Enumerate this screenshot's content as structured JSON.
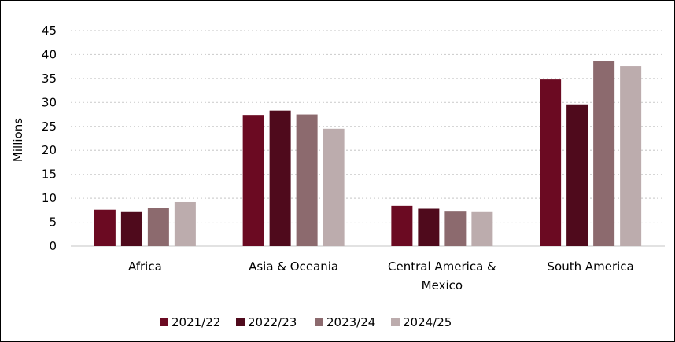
{
  "chart_data": {
    "type": "bar",
    "title": "",
    "xlabel": "",
    "ylabel": "Millions",
    "ylim": [
      0,
      45
    ],
    "yticks": [
      0,
      5,
      10,
      15,
      20,
      25,
      30,
      35,
      40,
      45
    ],
    "grid": true,
    "legend_position": "bottom",
    "categories": [
      "Africa",
      "Asia & Oceania",
      "Central America & Mexico",
      "South America"
    ],
    "category_lines": [
      [
        "Africa"
      ],
      [
        "Asia & Oceania"
      ],
      [
        "Central America &",
        "Mexico"
      ],
      [
        "South America"
      ]
    ],
    "series": [
      {
        "name": "2021/22",
        "color": "#6b0a22",
        "values": [
          7.6,
          27.4,
          8.4,
          34.8
        ]
      },
      {
        "name": "2022/23",
        "color": "#4f0a1c",
        "values": [
          7.1,
          28.3,
          7.8,
          29.6
        ]
      },
      {
        "name": "2023/24",
        "color": "#8c6a6e",
        "values": [
          7.9,
          27.5,
          7.2,
          38.7
        ]
      },
      {
        "name": "2024/25",
        "color": "#bcacad",
        "values": [
          9.2,
          24.5,
          7.1,
          37.6
        ]
      }
    ]
  }
}
